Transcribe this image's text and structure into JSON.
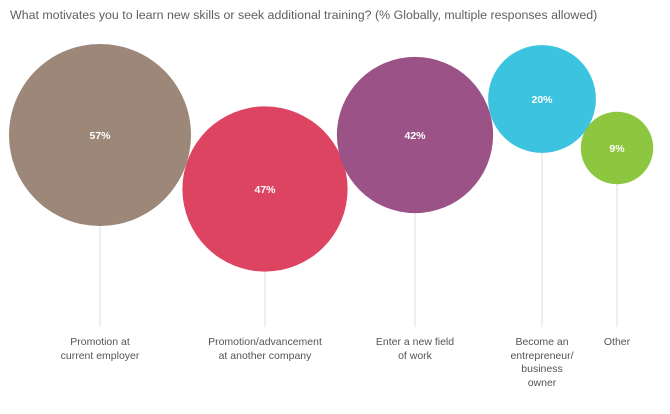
{
  "title": "What motivates you to learn new skills or seek additional training? (% Globally, multiple responses allowed)",
  "chart_data": {
    "type": "bubble",
    "title": "What motivates you to learn new skills or seek additional training? (% Globally, multiple responses allowed)",
    "categories": [
      "Promotion at\ncurrent employer",
      "Promotion/advancement\nat another company",
      "Enter a new field\nof work",
      "Become an\nentrepreneur/\nbusiness\nowner",
      "Other"
    ],
    "values": [
      57,
      47,
      42,
      20,
      9
    ],
    "value_labels": [
      "57%",
      "47%",
      "42%",
      "20%",
      "9%"
    ],
    "colors": [
      "#9c8778",
      "#dc4461",
      "#9b5387",
      "#3cc3e0",
      "#8dc63f"
    ],
    "unit": "%"
  }
}
